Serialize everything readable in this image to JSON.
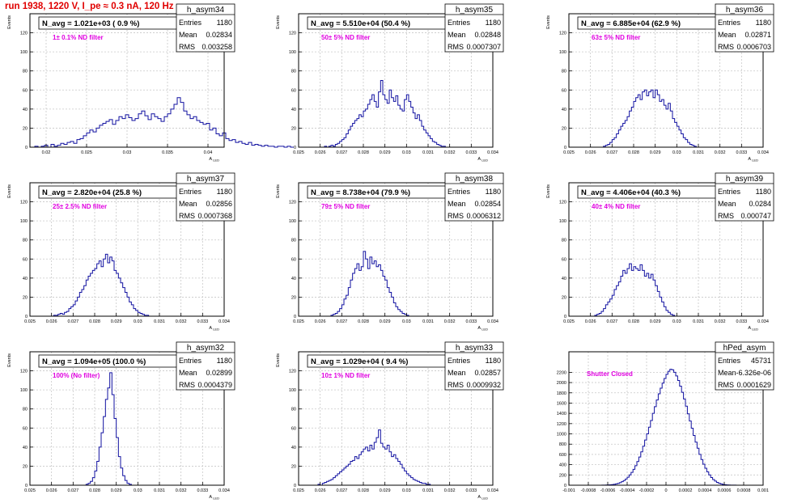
{
  "run_title": "run 1938,  1220 V, I_pe ≈ 0.3 nA, 120 Hz",
  "colors": {
    "histogram": "#1010a0",
    "axis": "#000000",
    "grid": "#c8c8c8",
    "annotation": "#e000e0",
    "title": "#e00000"
  },
  "y_axis_label": "Events",
  "x_axis_label": "A",
  "x_axis_subscript": "LED",
  "chart_data": [
    {
      "type": "bar",
      "name": "h_asym34",
      "navg": "N_avg = 1.021e+03 ( 0.9 %)",
      "filter": "1± 0.1% ND filter",
      "stats": {
        "Entries": "1180",
        "Mean": "0.02834",
        "RMS": "0.003258"
      },
      "xlim": [
        0.018,
        0.042
      ],
      "ylim": [
        0,
        140
      ],
      "xticks": [
        0.02,
        0.025,
        0.03,
        0.035,
        0.04
      ],
      "xtick_labels": [
        "0.02",
        "0.025",
        "0.03",
        "0.035",
        "0.04"
      ],
      "yticks": [
        0,
        20,
        40,
        60,
        80,
        100,
        120
      ],
      "xlabel": "A",
      "ylabel": "Events",
      "bins": {
        "x0": 0.0186,
        "width": 0.0004,
        "values": [
          1,
          0,
          1,
          2,
          0,
          3,
          1,
          2,
          4,
          3,
          5,
          6,
          4,
          8,
          9,
          12,
          15,
          18,
          16,
          20,
          23,
          25,
          27,
          29,
          24,
          28,
          32,
          30,
          34,
          31,
          28,
          30,
          35,
          38,
          33,
          29,
          35,
          32,
          30,
          27,
          32,
          35,
          40,
          45,
          52,
          47,
          38,
          34,
          30,
          32,
          28,
          26,
          24,
          25,
          18,
          20,
          14,
          12,
          15,
          9,
          7,
          8,
          5,
          6,
          4,
          3,
          5,
          2,
          3,
          2,
          1,
          2,
          1,
          1,
          0,
          1,
          1,
          0,
          1,
          0
        ]
      },
      "stat_rows": [
        {
          "label": "Entries",
          "value": "1180"
        },
        {
          "label": "Mean",
          "value": "0.02834"
        },
        {
          "label": "RMS",
          "value": "0.003258"
        }
      ]
    },
    {
      "type": "bar",
      "name": "h_asym35",
      "navg": "N_avg = 5.510e+04 (50.4 %)",
      "filter": "50± 5% ND filter",
      "stats": {
        "Entries": "1180",
        "Mean": "0.02848",
        "RMS": "0.0007307"
      },
      "xlim": [
        0.025,
        0.034
      ],
      "ylim": [
        0,
        140
      ],
      "xticks": [
        0.025,
        0.026,
        0.027,
        0.028,
        0.029,
        0.03,
        0.031,
        0.032,
        0.033,
        0.034
      ],
      "xtick_labels": [
        "0.025",
        "0.026",
        "0.027",
        "0.028",
        "0.029",
        "0.03",
        "0.031",
        "0.032",
        "0.033",
        "0.034"
      ],
      "yticks": [
        0,
        20,
        40,
        60,
        80,
        100,
        120
      ],
      "xlabel": "A",
      "ylabel": "Events",
      "bins": {
        "x0": 0.0262,
        "width": 0.0001,
        "values": [
          1,
          0,
          1,
          2,
          1,
          3,
          4,
          6,
          8,
          10,
          14,
          18,
          22,
          25,
          28,
          30,
          34,
          32,
          38,
          40,
          45,
          50,
          55,
          48,
          42,
          58,
          70,
          55,
          50,
          46,
          60,
          52,
          48,
          54,
          44,
          40,
          38,
          50,
          55,
          48,
          42,
          36,
          30,
          34,
          28,
          22,
          18,
          15,
          12,
          9,
          6,
          5,
          3,
          2,
          1,
          1
        ]
      },
      "stat_rows": [
        {
          "label": "Entries",
          "value": "1180"
        },
        {
          "label": "Mean",
          "value": "0.02848"
        },
        {
          "label": "RMS",
          "value": "0.0007307"
        }
      ]
    },
    {
      "type": "bar",
      "name": "h_asym36",
      "navg": "N_avg = 6.885e+04 (62.9 %)",
      "filter": "63± 5% ND filter",
      "stats": {
        "Entries": "1180",
        "Mean": "0.02871",
        "RMS": "0.0006703"
      },
      "xlim": [
        0.025,
        0.034
      ],
      "ylim": [
        0,
        140
      ],
      "xticks": [
        0.025,
        0.026,
        0.027,
        0.028,
        0.029,
        0.03,
        0.031,
        0.032,
        0.033,
        0.034
      ],
      "xtick_labels": [
        "0.025",
        "0.026",
        "0.027",
        "0.028",
        "0.029",
        "0.03",
        "0.031",
        "0.032",
        "0.033",
        "0.034"
      ],
      "yticks": [
        0,
        20,
        40,
        60,
        80,
        100,
        120
      ],
      "xlabel": "A",
      "ylabel": "Events",
      "bins": {
        "x0": 0.0266,
        "width": 0.0001,
        "values": [
          1,
          2,
          3,
          5,
          8,
          10,
          14,
          18,
          22,
          25,
          28,
          32,
          38,
          42,
          48,
          52,
          55,
          50,
          58,
          60,
          54,
          58,
          60,
          52,
          60,
          55,
          48,
          50,
          44,
          40,
          46,
          38,
          30,
          26,
          22,
          18,
          14,
          10,
          8,
          5,
          3,
          2,
          1
        ]
      },
      "stat_rows": [
        {
          "label": "Entries",
          "value": "1180"
        },
        {
          "label": "Mean",
          "value": "0.02871"
        },
        {
          "label": "RMS",
          "value": "0.0006703"
        }
      ]
    },
    {
      "type": "bar",
      "name": "h_asym37",
      "navg": "N_avg = 2.820e+04 (25.8 %)",
      "filter": "25± 2.5% ND filter",
      "stats": {
        "Entries": "1180",
        "Mean": "0.02856",
        "RMS": "0.0007368"
      },
      "xlim": [
        0.025,
        0.034
      ],
      "ylim": [
        0,
        140
      ],
      "xticks": [
        0.025,
        0.026,
        0.027,
        0.028,
        0.029,
        0.03,
        0.031,
        0.032,
        0.033,
        0.034
      ],
      "xtick_labels": [
        "0.025",
        "0.026",
        "0.027",
        "0.028",
        "0.029",
        "0.03",
        "0.031",
        "0.032",
        "0.033",
        "0.034"
      ],
      "yticks": [
        0,
        20,
        40,
        60,
        80,
        100,
        120
      ],
      "xlabel": "A",
      "ylabel": "Events",
      "bins": {
        "x0": 0.0261,
        "width": 0.0001,
        "values": [
          1,
          1,
          2,
          3,
          2,
          4,
          5,
          8,
          10,
          12,
          16,
          20,
          25,
          28,
          32,
          38,
          42,
          45,
          48,
          50,
          55,
          58,
          52,
          60,
          65,
          56,
          62,
          58,
          48,
          45,
          40,
          35,
          30,
          25,
          20,
          15,
          12,
          8,
          6,
          4,
          3,
          2,
          1,
          1
        ]
      },
      "stat_rows": [
        {
          "label": "Entries",
          "value": "1180"
        },
        {
          "label": "Mean",
          "value": "0.02856"
        },
        {
          "label": "RMS",
          "value": "0.0007368"
        }
      ]
    },
    {
      "type": "bar",
      "name": "h_asym38",
      "navg": "N_avg = 8.738e+04 (79.9 %)",
      "filter": "79± 5% ND filter",
      "stats": {
        "Entries": "1180",
        "Mean": "0.02854",
        "RMS": "0.0006312"
      },
      "xlim": [
        0.025,
        0.034
      ],
      "ylim": [
        0,
        140
      ],
      "xticks": [
        0.025,
        0.026,
        0.027,
        0.028,
        0.029,
        0.03,
        0.031,
        0.032,
        0.033,
        0.034
      ],
      "xtick_labels": [
        "0.025",
        "0.026",
        "0.027",
        "0.028",
        "0.029",
        "0.03",
        "0.031",
        "0.032",
        "0.033",
        "0.034"
      ],
      "yticks": [
        0,
        20,
        40,
        60,
        80,
        100,
        120
      ],
      "xlabel": "A",
      "ylabel": "Events",
      "bins": {
        "x0": 0.0265,
        "width": 0.0001,
        "values": [
          1,
          2,
          3,
          5,
          8,
          12,
          18,
          22,
          30,
          38,
          45,
          50,
          55,
          48,
          52,
          68,
          60,
          50,
          62,
          55,
          58,
          52,
          54,
          48,
          42,
          38,
          30,
          25,
          20,
          14,
          10,
          7,
          5,
          3,
          2,
          1
        ]
      },
      "stat_rows": [
        {
          "label": "Entries",
          "value": "1180"
        },
        {
          "label": "Mean",
          "value": "0.02854"
        },
        {
          "label": "RMS",
          "value": "0.0006312"
        }
      ]
    },
    {
      "type": "bar",
      "name": "h_asym39",
      "navg": "N_avg = 4.406e+04 (40.3 %)",
      "filter": "40± 4% ND filter",
      "stats": {
        "Entries": "1180",
        "Mean": "0.0284",
        "RMS": "0.000747"
      },
      "xlim": [
        0.025,
        0.034
      ],
      "ylim": [
        0,
        140
      ],
      "xticks": [
        0.025,
        0.026,
        0.027,
        0.028,
        0.029,
        0.03,
        0.031,
        0.032,
        0.033,
        0.034
      ],
      "xtick_labels": [
        "0.025",
        "0.026",
        "0.027",
        "0.028",
        "0.029",
        "0.03",
        "0.031",
        "0.032",
        "0.033",
        "0.034"
      ],
      "yticks": [
        0,
        20,
        40,
        60,
        80,
        100,
        120
      ],
      "xlabel": "A",
      "ylabel": "Events",
      "bins": {
        "x0": 0.0262,
        "width": 0.0001,
        "values": [
          1,
          2,
          3,
          5,
          8,
          12,
          15,
          18,
          22,
          28,
          32,
          36,
          42,
          48,
          45,
          50,
          55,
          48,
          52,
          50,
          48,
          54,
          48,
          42,
          45,
          40,
          44,
          38,
          32,
          26,
          20,
          15,
          10,
          6,
          4,
          2,
          1
        ]
      },
      "stat_rows": [
        {
          "label": "Entries",
          "value": "1180"
        },
        {
          "label": "Mean",
          "value": "0.0284"
        },
        {
          "label": "RMS",
          "value": "0.000747"
        }
      ]
    },
    {
      "type": "bar",
      "name": "h_asym32",
      "navg": "N_avg = 1.094e+05 (100.0 %)",
      "filter": "100% (No filter)",
      "stats": {
        "Entries": "1180",
        "Mean": "0.02899",
        "RMS": "0.0004379"
      },
      "xlim": [
        0.025,
        0.034
      ],
      "ylim": [
        0,
        140
      ],
      "xticks": [
        0.025,
        0.026,
        0.027,
        0.028,
        0.029,
        0.03,
        0.031,
        0.032,
        0.033,
        0.034
      ],
      "xtick_labels": [
        "0.025",
        "0.026",
        "0.027",
        "0.028",
        "0.029",
        "0.03",
        "0.031",
        "0.032",
        "0.033",
        "0.034"
      ],
      "yticks": [
        0,
        20,
        40,
        60,
        80,
        100,
        120
      ],
      "xlabel": "A",
      "ylabel": "Events",
      "bins": {
        "x0": 0.0276,
        "width": 0.0001,
        "values": [
          1,
          2,
          4,
          8,
          15,
          25,
          40,
          55,
          72,
          90,
          102,
          118,
          95,
          70,
          50,
          30,
          18,
          10,
          5,
          2,
          1
        ]
      },
      "stat_rows": [
        {
          "label": "Entries",
          "value": "1180"
        },
        {
          "label": "Mean",
          "value": "0.02899"
        },
        {
          "label": "RMS",
          "value": "0.0004379"
        }
      ]
    },
    {
      "type": "bar",
      "name": "h_asym33",
      "navg": "N_avg = 1.029e+04 ( 9.4 %)",
      "filter": "10± 1% ND filter",
      "stats": {
        "Entries": "1180",
        "Mean": "0.02857",
        "RMS": "0.0009932"
      },
      "xlim": [
        0.025,
        0.034
      ],
      "ylim": [
        0,
        140
      ],
      "xticks": [
        0.025,
        0.026,
        0.027,
        0.028,
        0.029,
        0.03,
        0.031,
        0.032,
        0.033,
        0.034
      ],
      "xtick_labels": [
        "0.025",
        "0.026",
        "0.027",
        "0.028",
        "0.029",
        "0.03",
        "0.031",
        "0.032",
        "0.033",
        "0.034"
      ],
      "yticks": [
        0,
        20,
        40,
        60,
        80,
        100,
        120
      ],
      "xlabel": "A",
      "ylabel": "Events",
      "bins": {
        "x0": 0.0259,
        "width": 0.0001,
        "values": [
          1,
          0,
          2,
          3,
          4,
          5,
          6,
          8,
          10,
          12,
          14,
          16,
          18,
          20,
          22,
          25,
          26,
          30,
          28,
          32,
          35,
          38,
          40,
          36,
          42,
          38,
          45,
          50,
          58,
          44,
          40,
          38,
          42,
          35,
          30,
          32,
          28,
          25,
          22,
          18,
          15,
          12,
          10,
          8,
          6,
          5,
          4,
          3,
          2,
          2,
          1,
          1
        ]
      },
      "stat_rows": [
        {
          "label": "Entries",
          "value": "1180"
        },
        {
          "label": "Mean",
          "value": "0.02857"
        },
        {
          "label": "RMS",
          "value": "0.0009932"
        }
      ]
    },
    {
      "type": "bar",
      "name": "hPed_asym",
      "navg": "",
      "filter": "Shutter Closed",
      "stats": {
        "Entries": "45731",
        "Mean": "-6.326e-06",
        "RMS": "0.0001629"
      },
      "xlim": [
        -0.001,
        0.001
      ],
      "ylim": [
        0,
        2600
      ],
      "xticks": [
        -0.001,
        -0.0008,
        -0.0006,
        -0.0004,
        -0.0002,
        0,
        0.0002,
        0.0004,
        0.0006,
        0.0008,
        0.001
      ],
      "xtick_labels": [
        "-0.001",
        "-0.0008",
        "-0.0006",
        "-0.0004",
        "-0.0002",
        "0",
        "0.0002",
        "0.0004",
        "0.0006",
        "0.0008",
        "0.001"
      ],
      "yticks": [
        0,
        200,
        400,
        600,
        800,
        1000,
        1200,
        1400,
        1600,
        1800,
        2000,
        2200
      ],
      "xlabel": "",
      "ylabel": "",
      "bins": {
        "x0": -0.00066,
        "width": 2e-05,
        "values": [
          1,
          2,
          3,
          5,
          8,
          12,
          18,
          25,
          35,
          50,
          68,
          90,
          120,
          155,
          200,
          250,
          310,
          380,
          460,
          550,
          650,
          760,
          880,
          1000,
          1130,
          1260,
          1400,
          1530,
          1660,
          1780,
          1890,
          1990,
          2080,
          2160,
          2220,
          2260,
          2250,
          2200,
          2130,
          2040,
          1930,
          1810,
          1680,
          1540,
          1390,
          1250,
          1110,
          970,
          840,
          720,
          600,
          500,
          410,
          330,
          260,
          200,
          150,
          110,
          80,
          55,
          38,
          25,
          16,
          10,
          6,
          4,
          2,
          1,
          1
        ]
      },
      "stat_rows": [
        {
          "label": "Entries",
          "value": "45731"
        },
        {
          "label": "Mean",
          "value": "-6.326e-06"
        },
        {
          "label": "RMS",
          "value": "0.0001629"
        }
      ]
    }
  ]
}
